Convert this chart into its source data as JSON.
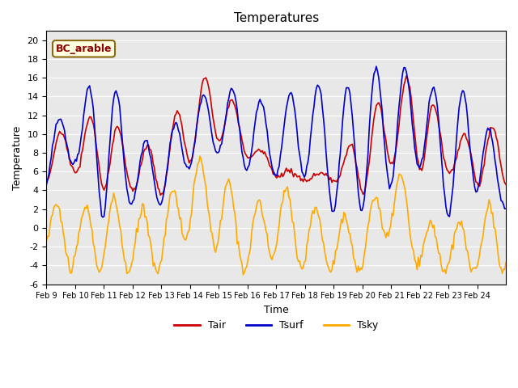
{
  "title": "Temperatures",
  "xlabel": "Time",
  "ylabel": "Temperature",
  "ylim": [
    -6,
    21
  ],
  "yticks": [
    -6,
    -4,
    -2,
    0,
    2,
    4,
    6,
    8,
    10,
    12,
    14,
    16,
    18,
    20
  ],
  "bg_color": "#e8e8e8",
  "legend_label": "BC_arable",
  "line_colors": {
    "Tair": "#cc0000",
    "Tsurf": "#0000cc",
    "Tsky": "#ffaa00"
  },
  "xtick_labels": [
    "Feb 9",
    "Feb 10",
    "Feb 11",
    "Feb 12",
    "Feb 13",
    "Feb 14",
    "Feb 15",
    "Feb 16",
    "Feb 17",
    "Feb 18",
    "Feb 19",
    "Feb 20",
    "Feb 21",
    "Feb 22",
    "Feb 23",
    "Feb 24"
  ],
  "n_days": 16,
  "samples_per_day": 24
}
